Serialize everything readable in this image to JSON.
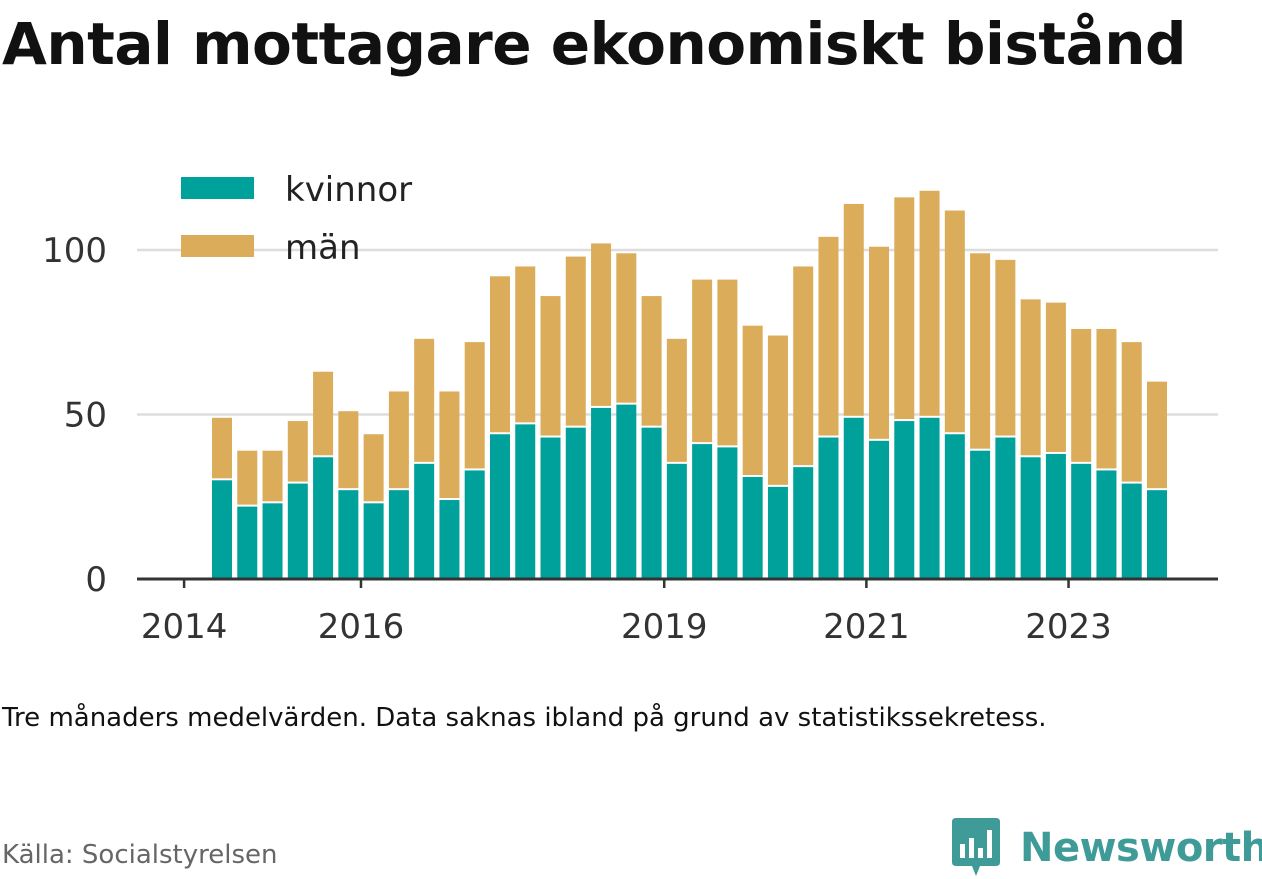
{
  "title": "Antal mottagare ekonomiskt bistånd",
  "note": "Tre månaders medelvärden. Data saknas ibland på grund av statistikssekretess.",
  "source": "Källa: Socialstyrelsen",
  "brand": {
    "name": "Newsworthy",
    "icon": "newsworthy-logo-icon"
  },
  "colors": {
    "kvinnor": "#00a19a",
    "man": "#dbac59",
    "grid": "#dddddd",
    "axis": "#333333"
  },
  "chart_data": {
    "type": "bar",
    "stacked": true,
    "categories": [
      "2014-Q2",
      "2014-Q3",
      "2014-Q4",
      "2015-Q1",
      "2015-Q2",
      "2015-Q3",
      "2015-Q4",
      "2016-Q1",
      "2016-Q2",
      "2016-Q3",
      "2016-Q4",
      "2017-Q1",
      "2017-Q2",
      "2017-Q3",
      "2017-Q4",
      "2018-Q1",
      "2018-Q2",
      "2018-Q3",
      "2018-Q4",
      "2019-Q1",
      "2019-Q2",
      "2019-Q3",
      "2019-Q4",
      "2020-Q1",
      "2020-Q2",
      "2020-Q3",
      "2020-Q4",
      "2021-Q1",
      "2021-Q2",
      "2021-Q3",
      "2021-Q4",
      "2022-Q1",
      "2022-Q2",
      "2022-Q3",
      "2022-Q4",
      "2023-Q1",
      "2023-Q2",
      "2023-Q3"
    ],
    "series": [
      {
        "name": "kvinnor",
        "color": "#00a19a",
        "values": [
          30,
          22,
          23,
          29,
          37,
          27,
          23,
          27,
          35,
          24,
          33,
          44,
          47,
          43,
          46,
          52,
          53,
          46,
          35,
          41,
          40,
          31,
          28,
          34,
          43,
          49,
          42,
          48,
          49,
          44,
          39,
          43,
          37,
          38,
          35,
          33,
          29,
          27
        ]
      },
      {
        "name": "män",
        "color": "#dbac59",
        "values": [
          19,
          17,
          16,
          19,
          26,
          24,
          21,
          30,
          38,
          33,
          39,
          48,
          48,
          43,
          52,
          50,
          46,
          40,
          38,
          50,
          51,
          46,
          46,
          61,
          61,
          65,
          59,
          68,
          69,
          68,
          60,
          54,
          48,
          46,
          41,
          43,
          43,
          33
        ]
      }
    ],
    "x_ticks": [
      "2014",
      "2016",
      "2019",
      "2021",
      "2023"
    ],
    "y_ticks": [
      0,
      50,
      100
    ],
    "ylim": [
      0,
      120
    ],
    "legend": {
      "position": "top-left",
      "entries": [
        "kvinnor",
        "män"
      ]
    },
    "grid": true
  }
}
